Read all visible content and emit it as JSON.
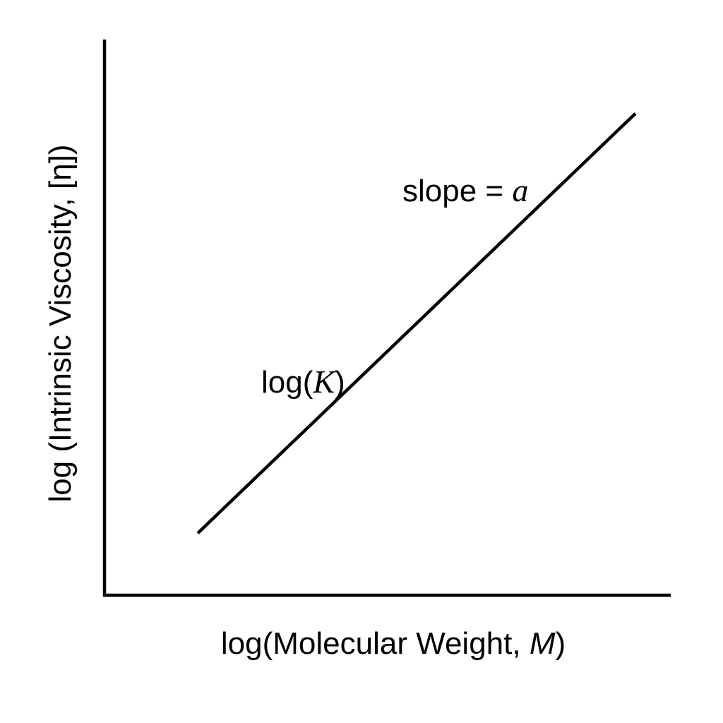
{
  "chart_data": {
    "type": "line",
    "xlabel": {
      "prefix": "log(Molecular Weight, ",
      "symbol": "M",
      "suffix": ")"
    },
    "ylabel": "log (Intrinsic Viscosity, [η])",
    "annotations": {
      "slope": {
        "prefix": "slope = ",
        "symbol": "a"
      },
      "intercept": {
        "prefix": "log(",
        "symbol": "K",
        "suffix": ")"
      }
    },
    "xlim": [
      0,
      1
    ],
    "ylim": [
      0,
      1
    ],
    "series": [
      {
        "x": [
          0.165,
          0.94
        ],
        "y": [
          0.11,
          0.855
        ]
      }
    ],
    "grid": false,
    "ticks": false,
    "colors": {
      "line": "#000000",
      "axis": "#000000",
      "text": "#000000"
    }
  }
}
